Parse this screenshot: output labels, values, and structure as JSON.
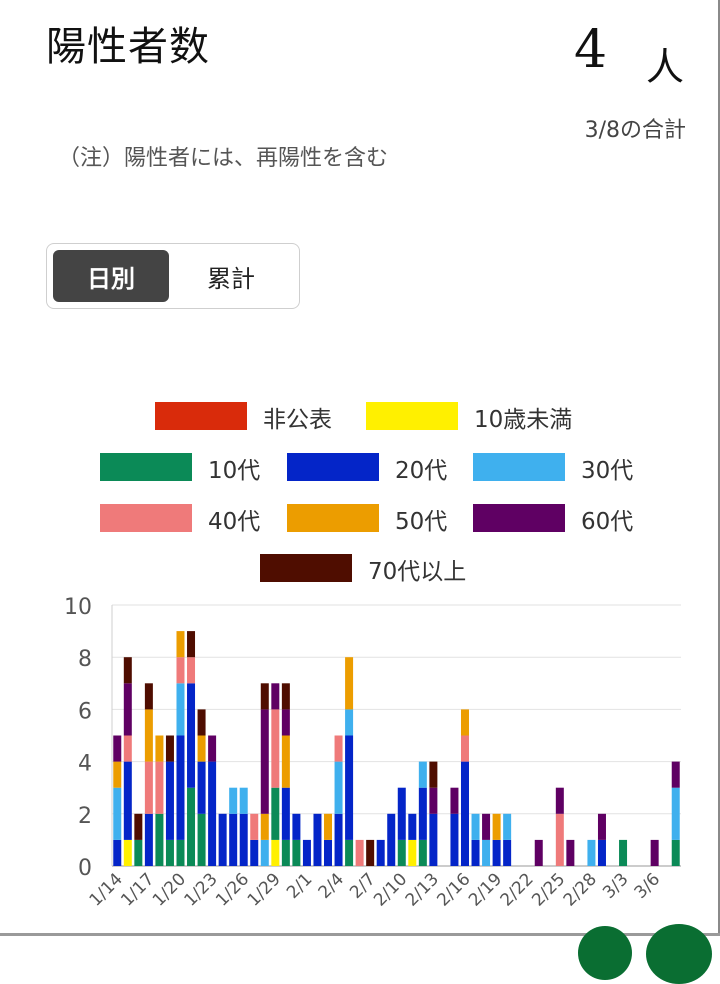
{
  "header": {
    "title": "陽性者数",
    "count_value": "4",
    "count_unit": "人",
    "as_of": "3/8の合計",
    "note": "（注）陽性者には、再陽性を含む"
  },
  "toggle": {
    "daily_label": "日別",
    "cumulative_label": "累計",
    "selected": "daily"
  },
  "legend": [
    {
      "label": "非公表",
      "color": "#d92b0b"
    },
    {
      "label": "10歳未満",
      "color": "#fff000"
    },
    {
      "label": "10代",
      "color": "#0b8a57"
    },
    {
      "label": "20代",
      "color": "#0425c8"
    },
    {
      "label": "30代",
      "color": "#3fb0ee"
    },
    {
      "label": "40代",
      "color": "#ef7a7a"
    },
    {
      "label": "50代",
      "color": "#ec9d00"
    },
    {
      "label": "60代",
      "color": "#5f0063"
    },
    {
      "label": "70代以上",
      "color": "#4f0d00"
    }
  ],
  "chart_data": {
    "type": "bar",
    "stacked": true,
    "x": [
      "1/14",
      "1/15",
      "1/16",
      "1/17",
      "1/18",
      "1/19",
      "1/20",
      "1/21",
      "1/22",
      "1/23",
      "1/24",
      "1/25",
      "1/26",
      "1/27",
      "1/28",
      "1/29",
      "1/30",
      "1/31",
      "2/1",
      "2/2",
      "2/3",
      "2/4",
      "2/5",
      "2/6",
      "2/7",
      "2/8",
      "2/9",
      "2/10",
      "2/11",
      "2/12",
      "2/13",
      "2/14",
      "2/15",
      "2/16",
      "2/17",
      "2/18",
      "2/19",
      "2/20",
      "2/21",
      "2/22",
      "2/23",
      "2/24",
      "2/25",
      "2/26",
      "2/27",
      "2/28",
      "3/1",
      "3/2",
      "3/3",
      "3/4",
      "3/5",
      "3/6",
      "3/7",
      "3/8"
    ],
    "tick_labels": [
      "1/14",
      "1/17",
      "1/20",
      "1/23",
      "1/26",
      "1/29",
      "2/1",
      "2/4",
      "2/7",
      "2/10",
      "2/13",
      "2/16",
      "2/19",
      "2/22",
      "2/25",
      "2/28",
      "3/3",
      "3/6"
    ],
    "tick_every": 3,
    "y_ticks": [
      0,
      2,
      4,
      6,
      8,
      10
    ],
    "ylim": [
      0,
      10
    ],
    "grid": true,
    "series": [
      {
        "name": "非公表",
        "color": "#d92b0b",
        "values": [
          0,
          0,
          0,
          0,
          0,
          0,
          0,
          0,
          0,
          0,
          0,
          0,
          0,
          0,
          0,
          0,
          0,
          0,
          0,
          0,
          0,
          0,
          0,
          0,
          0,
          0,
          0,
          0,
          0,
          0,
          0,
          0,
          0,
          0,
          0,
          0,
          0,
          0,
          0,
          0,
          0,
          0,
          0,
          0,
          0,
          0,
          0,
          0,
          0,
          0,
          0,
          0,
          0,
          0
        ]
      },
      {
        "name": "10歳未満",
        "color": "#fff000",
        "values": [
          0,
          1,
          0,
          0,
          0,
          0,
          0,
          0,
          0,
          0,
          0,
          0,
          0,
          0,
          0,
          1,
          0,
          0,
          0,
          0,
          0,
          0,
          0,
          0,
          0,
          0,
          0,
          0,
          1,
          0,
          0,
          0,
          0,
          0,
          0,
          0,
          0,
          0,
          0,
          0,
          0,
          0,
          0,
          0,
          0,
          0,
          0,
          0,
          0,
          0,
          0,
          0,
          0,
          0
        ]
      },
      {
        "name": "10代",
        "color": "#0b8a57",
        "values": [
          0,
          0,
          1,
          0,
          2,
          1,
          1,
          3,
          2,
          0,
          0,
          0,
          0,
          0,
          0,
          2,
          1,
          1,
          0,
          0,
          0,
          0,
          1,
          0,
          0,
          0,
          0,
          1,
          0,
          1,
          0,
          0,
          0,
          0,
          0,
          0,
          0,
          0,
          0,
          0,
          0,
          0,
          0,
          0,
          0,
          0,
          0,
          0,
          1,
          0,
          0,
          0,
          0,
          1
        ]
      },
      {
        "name": "20代",
        "color": "#0425c8",
        "values": [
          1,
          3,
          0,
          2,
          0,
          3,
          4,
          4,
          2,
          4,
          2,
          2,
          2,
          1,
          0,
          0,
          2,
          1,
          1,
          2,
          1,
          2,
          4,
          0,
          0,
          1,
          2,
          2,
          1,
          2,
          2,
          0,
          2,
          4,
          1,
          0,
          1,
          1,
          0,
          0,
          0,
          0,
          0,
          0,
          0,
          0,
          1,
          0,
          0,
          0,
          0,
          0,
          0,
          0
        ]
      },
      {
        "name": "30代",
        "color": "#3fb0ee",
        "values": [
          2,
          0,
          0,
          0,
          0,
          0,
          2,
          0,
          0,
          0,
          0,
          1,
          1,
          0,
          1,
          0,
          0,
          0,
          0,
          0,
          0,
          2,
          1,
          0,
          0,
          0,
          0,
          0,
          0,
          1,
          0,
          0,
          0,
          0,
          1,
          1,
          0,
          1,
          0,
          0,
          0,
          0,
          0,
          0,
          0,
          1,
          0,
          0,
          0,
          0,
          0,
          0,
          0,
          2
        ]
      },
      {
        "name": "40代",
        "color": "#ef7a7a",
        "values": [
          0,
          1,
          0,
          2,
          2,
          0,
          1,
          1,
          0,
          0,
          0,
          0,
          0,
          1,
          0,
          3,
          0,
          0,
          0,
          0,
          0,
          1,
          0,
          1,
          0,
          0,
          0,
          0,
          0,
          0,
          0,
          0,
          0,
          1,
          0,
          0,
          0,
          0,
          0,
          0,
          0,
          0,
          2,
          0,
          0,
          0,
          0,
          0,
          0,
          0,
          0,
          0,
          0,
          0
        ]
      },
      {
        "name": "50代",
        "color": "#ec9d00",
        "values": [
          1,
          0,
          0,
          2,
          1,
          0,
          1,
          0,
          1,
          0,
          0,
          0,
          0,
          0,
          1,
          0,
          2,
          0,
          0,
          0,
          1,
          0,
          2,
          0,
          0,
          0,
          0,
          0,
          0,
          0,
          0,
          0,
          0,
          1,
          0,
          0,
          1,
          0,
          0,
          0,
          0,
          0,
          0,
          0,
          0,
          0,
          0,
          0,
          0,
          0,
          0,
          0,
          0,
          0
        ]
      },
      {
        "name": "60代",
        "color": "#5f0063",
        "values": [
          1,
          2,
          0,
          0,
          0,
          0,
          0,
          0,
          0,
          1,
          0,
          0,
          0,
          0,
          4,
          1,
          1,
          0,
          0,
          0,
          0,
          0,
          0,
          0,
          0,
          0,
          0,
          0,
          0,
          0,
          1,
          0,
          1,
          0,
          0,
          1,
          0,
          0,
          0,
          0,
          1,
          0,
          1,
          1,
          0,
          0,
          1,
          0,
          0,
          0,
          0,
          1,
          0,
          1
        ]
      },
      {
        "name": "70代以上",
        "color": "#4f0d00",
        "values": [
          0,
          1,
          1,
          1,
          0,
          1,
          0,
          1,
          1,
          0,
          0,
          0,
          0,
          0,
          1,
          0,
          1,
          0,
          0,
          0,
          0,
          0,
          0,
          0,
          1,
          0,
          0,
          0,
          0,
          0,
          1,
          0,
          0,
          0,
          0,
          0,
          0,
          0,
          0,
          0,
          0,
          0,
          0,
          0,
          0,
          0,
          0,
          0,
          0,
          0,
          0,
          0,
          0,
          0
        ]
      }
    ]
  }
}
